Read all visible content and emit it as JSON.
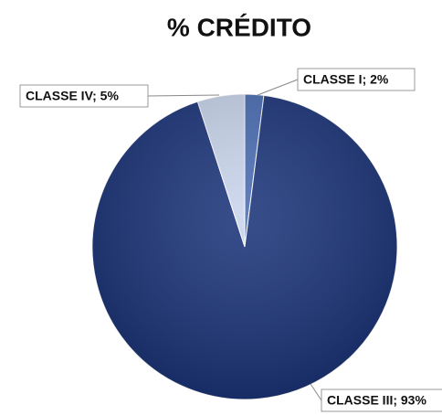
{
  "chart_data": {
    "type": "pie",
    "title": "% CRÉDITO",
    "values": [
      2,
      93,
      5
    ],
    "value_labels": [
      "CLASSE I; 2%",
      "CLASSE III; 93%",
      "CLASSE IV; 5%"
    ],
    "colors": [
      "#4a6db3",
      "#1c357a",
      "#c9d5ec"
    ]
  }
}
